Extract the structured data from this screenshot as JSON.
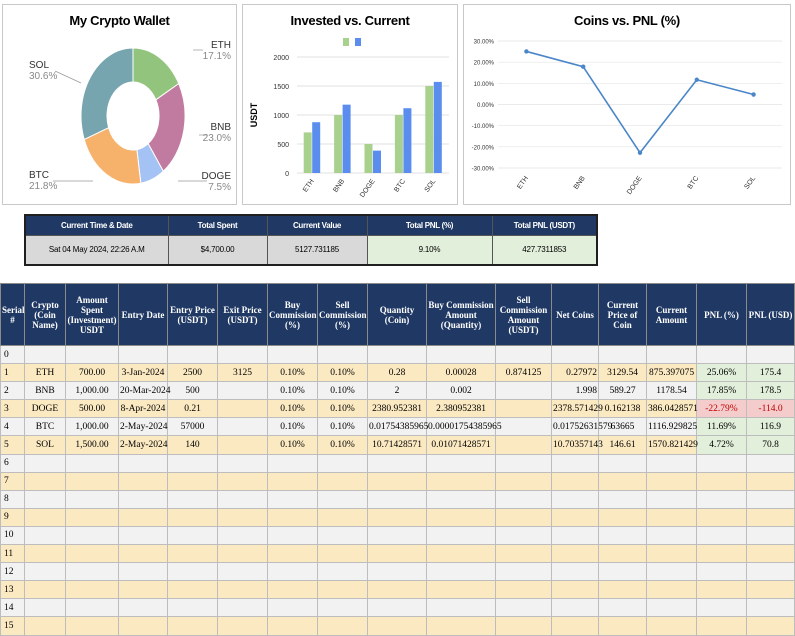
{
  "pie_chart": {
    "title": "My Crypto Wallet",
    "slices": [
      {
        "name": "ETH",
        "percent": "17.1%",
        "value": 17.1,
        "color": "#93c47d"
      },
      {
        "name": "BNB",
        "percent": "23.0%",
        "value": 23.0,
        "color": "#c27ba0"
      },
      {
        "name": "DOGE",
        "percent": "7.5%",
        "value": 7.5,
        "color": "#a4c2f4"
      },
      {
        "name": "BTC",
        "percent": "21.8%",
        "value": 21.8,
        "color": "#f6b26b"
      },
      {
        "name": "SOL",
        "percent": "30.6%",
        "value": 30.6,
        "color": "#76a5af"
      }
    ]
  },
  "chart_data": [
    {
      "type": "bar",
      "title": "Invested vs. Current",
      "ylabel": "USDT",
      "categories": [
        "ETH",
        "BNB",
        "DOGE",
        "BTC",
        "SOL"
      ],
      "ylim": [
        0,
        2000
      ],
      "yticks": [
        "0",
        "500",
        "1000",
        "1500",
        "2000"
      ],
      "legend_colors": [
        "#a9d18e",
        "#5b8def"
      ],
      "series": [
        {
          "values": [
            700,
            1000,
            500,
            1000,
            1500
          ],
          "color": "#a9d18e"
        },
        {
          "values": [
            875.4,
            1178.5,
            386.0,
            1116.9,
            1570.8
          ],
          "color": "#5b8def"
        }
      ]
    },
    {
      "type": "line",
      "title": "Coins vs. PNL (%)",
      "categories": [
        "ETH",
        "BNB",
        "DOGE",
        "BTC",
        "SOL"
      ],
      "values": [
        25.06,
        17.85,
        -22.79,
        11.69,
        4.72
      ],
      "ylim": [
        -30,
        30
      ],
      "yticks": [
        "30.00%",
        "20.00%",
        "10.00%",
        "0.00%",
        "-10.00%",
        "-20.00%",
        "-30.00%"
      ],
      "color": "#4a86c8"
    }
  ],
  "summary": {
    "headers": [
      "Current Time & Date",
      "Total Spent",
      "Current Value",
      "Total PNL (%)",
      "Total PNL (USDT)"
    ],
    "values": [
      "Sat 04 May 2024, 22:26 A.M",
      "$4,700.00",
      "5127.731185",
      "9.10%",
      "427.7311853"
    ]
  },
  "table": {
    "headers": [
      "Serial #",
      "Crypto (Coin Name)",
      "Amount Spent (Investment) USDT",
      "Entry Date",
      "Entry Price (USDT)",
      "Exit Price (USDT)",
      "Buy Commission (%)",
      "Sell Commission (%)",
      "Quantity (Coin)",
      "Buy Commission Amount (Quantity)",
      "Sell Commission Amount (USDT)",
      "Net Coins",
      "Current Price of Coin",
      "Current Amount",
      "PNL (%)",
      "PNL (USD)"
    ],
    "rows": [
      [
        "0",
        "",
        "",
        "",
        "",
        "",
        "",
        "",
        "",
        "",
        "",
        "",
        "",
        "",
        "",
        ""
      ],
      [
        "1",
        "ETH",
        "700.00",
        "3-Jan-2024",
        "2500",
        "3125",
        "0.10%",
        "0.10%",
        "0.28",
        "0.00028",
        "0.874125",
        "0.27972",
        "3129.54",
        "875.397075",
        "25.06%",
        "175.4"
      ],
      [
        "2",
        "BNB",
        "1,000.00",
        "20-Mar-2024",
        "500",
        "",
        "0.10%",
        "0.10%",
        "2",
        "0.002",
        "",
        "1.998",
        "589.27",
        "1178.54",
        "17.85%",
        "178.5"
      ],
      [
        "3",
        "DOGE",
        "500.00",
        "8-Apr-2024",
        "0.21",
        "",
        "0.10%",
        "0.10%",
        "2380.952381",
        "2.380952381",
        "",
        "2378.571429",
        "0.162138",
        "386.0428571",
        "-22.79%",
        "-114.0"
      ],
      [
        "4",
        "BTC",
        "1,000.00",
        "2-May-2024",
        "57000",
        "",
        "0.10%",
        "0.10%",
        "0.01754385965",
        "0.00001754385965",
        "",
        "0.01752631579",
        "63665",
        "1116.929825",
        "11.69%",
        "116.9"
      ],
      [
        "5",
        "SOL",
        "1,500.00",
        "2-May-2024",
        "140",
        "",
        "0.10%",
        "0.10%",
        "10.71428571",
        "0.01071428571",
        "",
        "10.70357143",
        "146.61",
        "1570.821429",
        "4.72%",
        "70.8"
      ],
      [
        "6",
        "",
        "",
        "",
        "",
        "",
        "",
        "",
        "",
        "",
        "",
        "",
        "",
        "",
        "",
        ""
      ],
      [
        "7",
        "",
        "",
        "",
        "",
        "",
        "",
        "",
        "",
        "",
        "",
        "",
        "",
        "",
        "",
        ""
      ],
      [
        "8",
        "",
        "",
        "",
        "",
        "",
        "",
        "",
        "",
        "",
        "",
        "",
        "",
        "",
        "",
        ""
      ],
      [
        "9",
        "",
        "",
        "",
        "",
        "",
        "",
        "",
        "",
        "",
        "",
        "",
        "",
        "",
        "",
        ""
      ],
      [
        "10",
        "",
        "",
        "",
        "",
        "",
        "",
        "",
        "",
        "",
        "",
        "",
        "",
        "",
        "",
        ""
      ],
      [
        "11",
        "",
        "",
        "",
        "",
        "",
        "",
        "",
        "",
        "",
        "",
        "",
        "",
        "",
        "",
        ""
      ],
      [
        "12",
        "",
        "",
        "",
        "",
        "",
        "",
        "",
        "",
        "",
        "",
        "",
        "",
        "",
        "",
        ""
      ],
      [
        "13",
        "",
        "",
        "",
        "",
        "",
        "",
        "",
        "",
        "",
        "",
        "",
        "",
        "",
        "",
        ""
      ],
      [
        "14",
        "",
        "",
        "",
        "",
        "",
        "",
        "",
        "",
        "",
        "",
        "",
        "",
        "",
        "",
        ""
      ],
      [
        "15",
        "",
        "",
        "",
        "",
        "",
        "",
        "",
        "",
        "",
        "",
        "",
        "",
        "",
        "",
        ""
      ]
    ]
  }
}
